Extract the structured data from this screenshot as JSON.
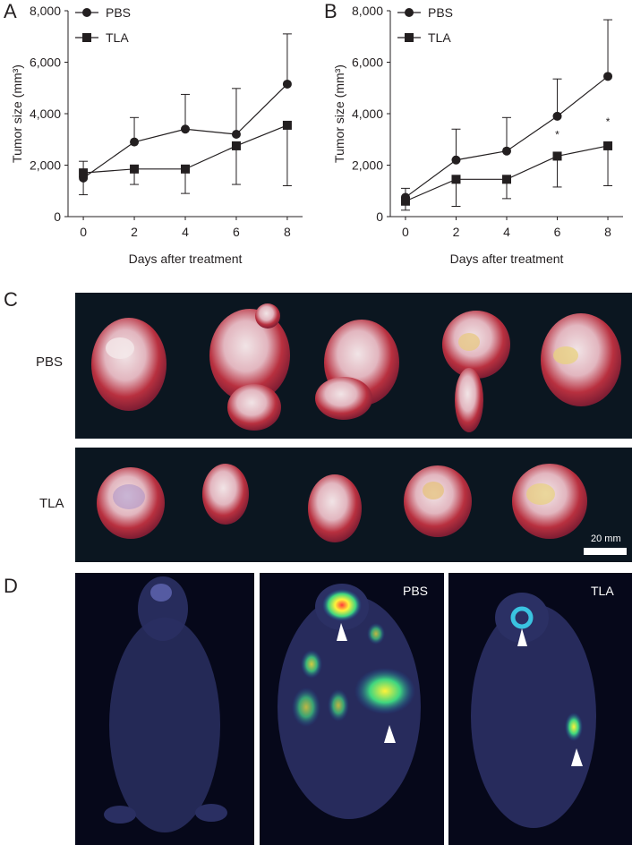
{
  "panels": {
    "A": {
      "letter": "A"
    },
    "B": {
      "letter": "B"
    },
    "C": {
      "letter": "C",
      "row_labels": [
        "PBS",
        "TLA"
      ],
      "scale_label": "20 mm"
    },
    "D": {
      "letter": "D",
      "labels": [
        "PBS",
        "TLA"
      ]
    }
  },
  "colors": {
    "ink": "#231f20",
    "background": "#ffffff",
    "tumor_bg": "#0b1620",
    "imaging_bg": "#06081a"
  },
  "chart_data": [
    {
      "panel": "A",
      "type": "line",
      "xlabel": "Days after treatment",
      "ylabel": "Tumor size (mm³)",
      "x": [
        0,
        2,
        4,
        6,
        8
      ],
      "x_ticks": [
        "0",
        "2",
        "4",
        "6",
        "8"
      ],
      "y_ticks": [
        "0",
        "2,000",
        "4,000",
        "6,000",
        "8,000"
      ],
      "ylim": [
        0,
        8000
      ],
      "xlim": [
        -0.6,
        8.6
      ],
      "grid": false,
      "legend_position": "top-left",
      "series": [
        {
          "name": "PBS",
          "marker": "circle",
          "values": [
            1500,
            2900,
            3400,
            3200,
            5150
          ],
          "err_up": [
            2150,
            3850,
            4750,
            4980,
            7100
          ],
          "err_down": [
            0,
            0,
            0,
            0,
            0
          ]
        },
        {
          "name": "TLA",
          "marker": "square",
          "values": [
            1700,
            1850,
            1850,
            2750,
            3550
          ],
          "err_up": [
            0,
            0,
            0,
            0,
            0
          ],
          "err_down": [
            850,
            1250,
            900,
            1250,
            1200
          ]
        }
      ],
      "annotations": []
    },
    {
      "panel": "B",
      "type": "line",
      "xlabel": "Days after treatment",
      "ylabel": "Tumor size (mm³)",
      "x": [
        0,
        2,
        4,
        6,
        8
      ],
      "x_ticks": [
        "0",
        "2",
        "4",
        "6",
        "8"
      ],
      "y_ticks": [
        "0",
        "2,000",
        "4,000",
        "6,000",
        "8,000"
      ],
      "ylim": [
        0,
        8000
      ],
      "xlim": [
        -0.6,
        8.6
      ],
      "grid": false,
      "legend_position": "top-left",
      "series": [
        {
          "name": "PBS",
          "marker": "circle",
          "values": [
            750,
            2200,
            2550,
            3900,
            5450
          ],
          "err_up": [
            1100,
            3400,
            3850,
            5350,
            7650
          ],
          "err_down": [
            0,
            0,
            0,
            0,
            0
          ]
        },
        {
          "name": "TLA",
          "marker": "square",
          "values": [
            600,
            1450,
            1450,
            2350,
            2750
          ],
          "err_up": [
            0,
            0,
            0,
            0,
            0
          ],
          "err_down": [
            250,
            400,
            700,
            1150,
            1200
          ]
        }
      ],
      "annotations": [
        {
          "x": 6,
          "y": 3050,
          "text": "*"
        },
        {
          "x": 8,
          "y": 3550,
          "text": "*"
        }
      ]
    }
  ]
}
